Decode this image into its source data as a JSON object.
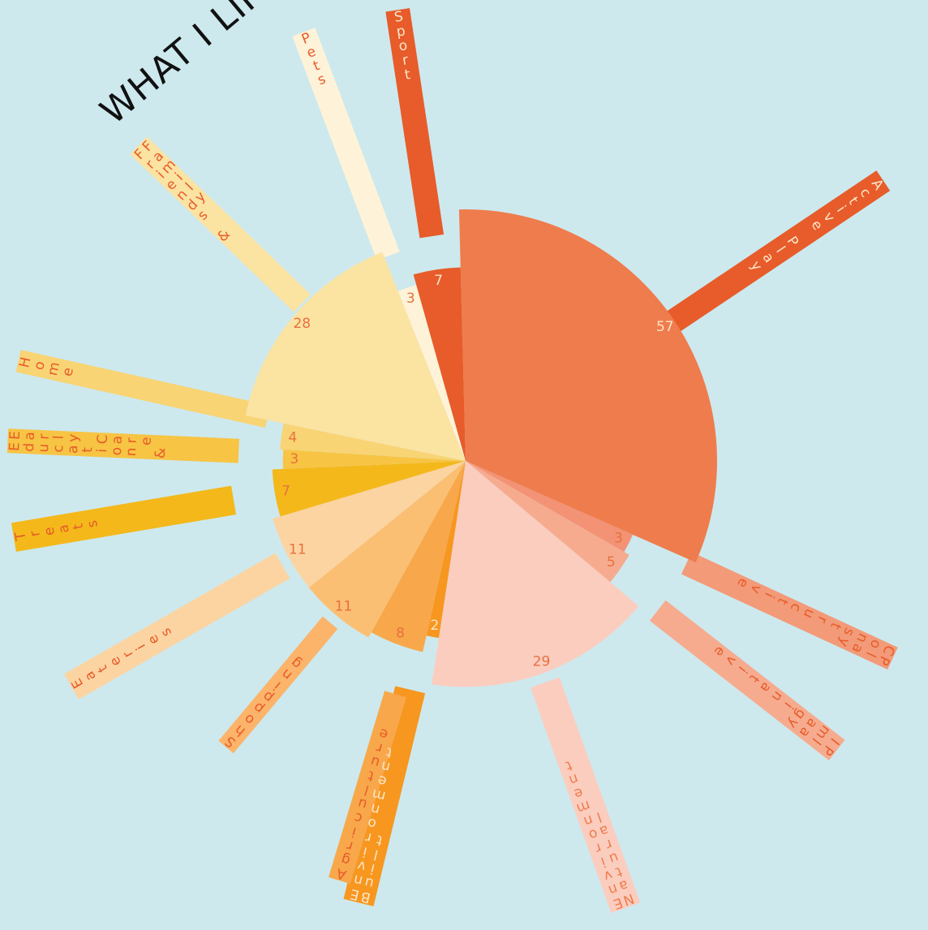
{
  "chart_data": {
    "type": "pie",
    "title": "WHAT I LIKE TO DO",
    "slices": [
      {
        "name": "Active Play",
        "value": 57,
        "color": "#ef7c4d",
        "ray_color": "#e75c2a",
        "text_color": "#fde5c8"
      },
      {
        "name": "Constructive Play",
        "value": 3,
        "color": "#f39275",
        "ray_color": "#f39a78",
        "text_color": "#e75c2a"
      },
      {
        "name": "Imaginative Play",
        "value": 5,
        "color": "#f6ab8f",
        "ray_color": "#f6ab8f",
        "text_color": "#e75c2a"
      },
      {
        "name": "Natural Environment",
        "value": 29,
        "color": "#fbcdbf",
        "ray_color": "#fbcdbf",
        "text_color": "#ef7c4d"
      },
      {
        "name": "Built Environment",
        "value": 2,
        "color": "#f7971f",
        "ray_color": "#f7971f",
        "text_color": "#fde5c8"
      },
      {
        "name": "Agriculture",
        "value": 8,
        "color": "#f8a84a",
        "ray_color": "#f8a84a",
        "text_color": "#e75c2a"
      },
      {
        "name": "Shopping",
        "value": 11,
        "color": "#fbbf73",
        "ray_color": "#fbb46a",
        "text_color": "#e75c2a"
      },
      {
        "name": "Eateries",
        "value": 11,
        "color": "#fcd4a1",
        "ray_color": "#fcd4a1",
        "text_color": "#e75c2a"
      },
      {
        "name": "Treats",
        "value": 7,
        "color": "#f4b81b",
        "ray_color": "#f4b81b",
        "text_color": "#e75c2a"
      },
      {
        "name": "Education & Early Care",
        "value": 3,
        "color": "#f7c444",
        "ray_color": "#f7c444",
        "text_color": "#e75c2a"
      },
      {
        "name": "Home",
        "value": 4,
        "color": "#f8d474",
        "ray_color": "#f8d474",
        "text_color": "#e75c2a"
      },
      {
        "name": "Friends & Family",
        "value": 28,
        "color": "#fbe3a2",
        "ray_color": "#fbe3a2",
        "text_color": "#e75c2a"
      },
      {
        "name": "Pets",
        "value": 3,
        "color": "#fef3d8",
        "ray_color": "#fef3d8",
        "text_color": "#e75c2a"
      },
      {
        "name": "Sport",
        "value": 7,
        "color": "#e75c2a",
        "ray_color": "#e75c2a",
        "text_color": "#fde5c8"
      }
    ]
  }
}
